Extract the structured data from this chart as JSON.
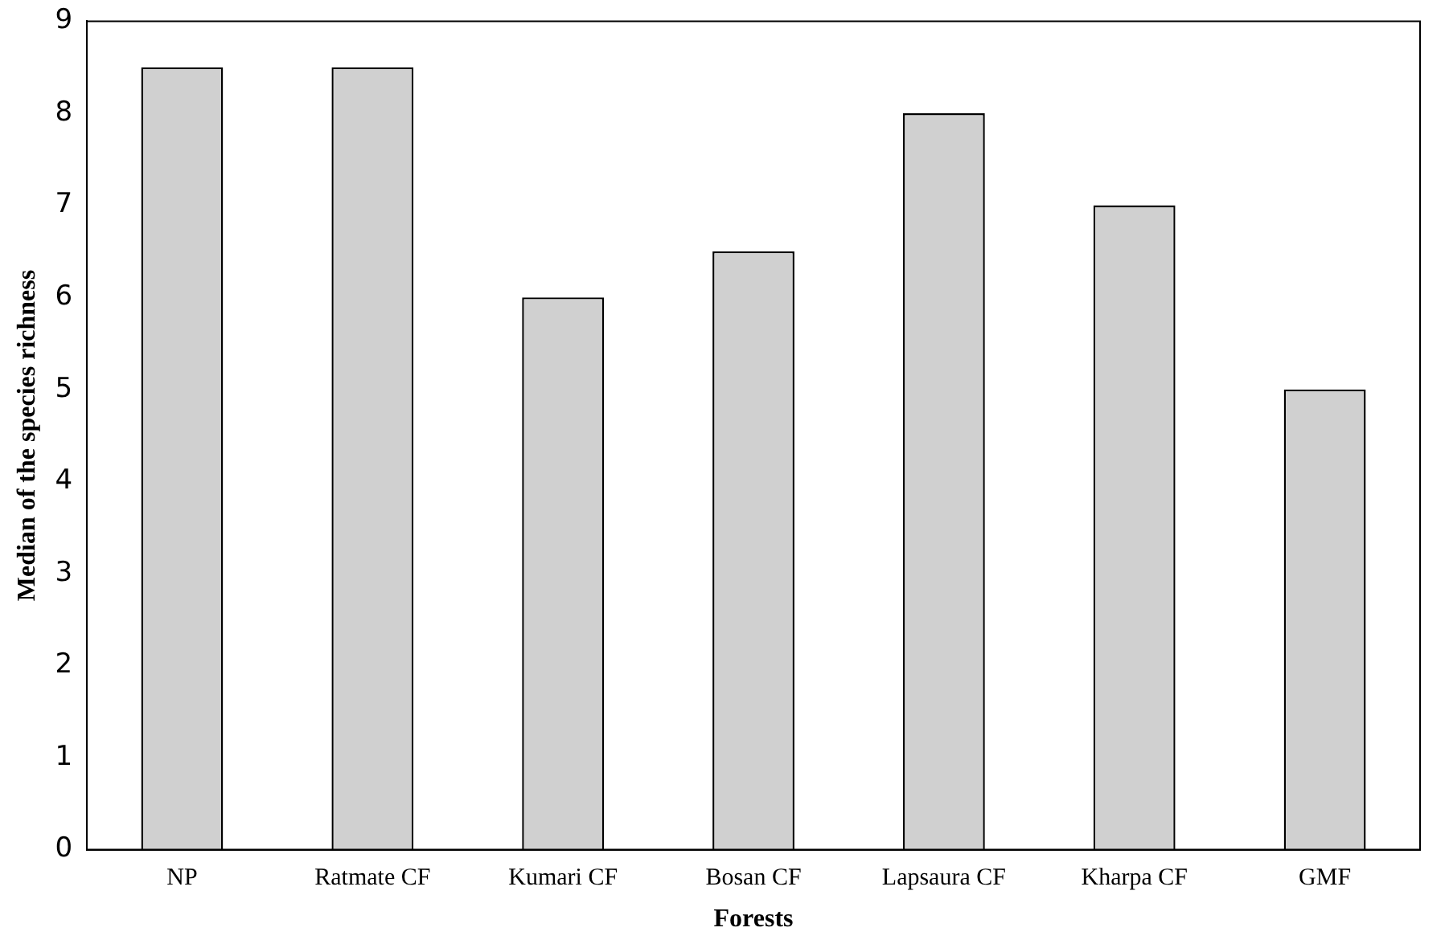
{
  "chart_data": {
    "type": "bar",
    "xlabel": "Forests",
    "ylabel": "Median of the species richness",
    "categories": [
      "NP",
      "Ratmate CF",
      "Kumari CF",
      "Bosan CF",
      "Lapsaura CF",
      "Kharpa CF",
      "GMF"
    ],
    "values": [
      8.5,
      8.5,
      6,
      6.5,
      8,
      7,
      5
    ],
    "color": "#d0d0d0",
    "ylim": [
      0,
      9
    ],
    "yticks": [
      0,
      1,
      2,
      3,
      4,
      5,
      6,
      7,
      8,
      9
    ],
    "grid": false,
    "legend": false
  }
}
